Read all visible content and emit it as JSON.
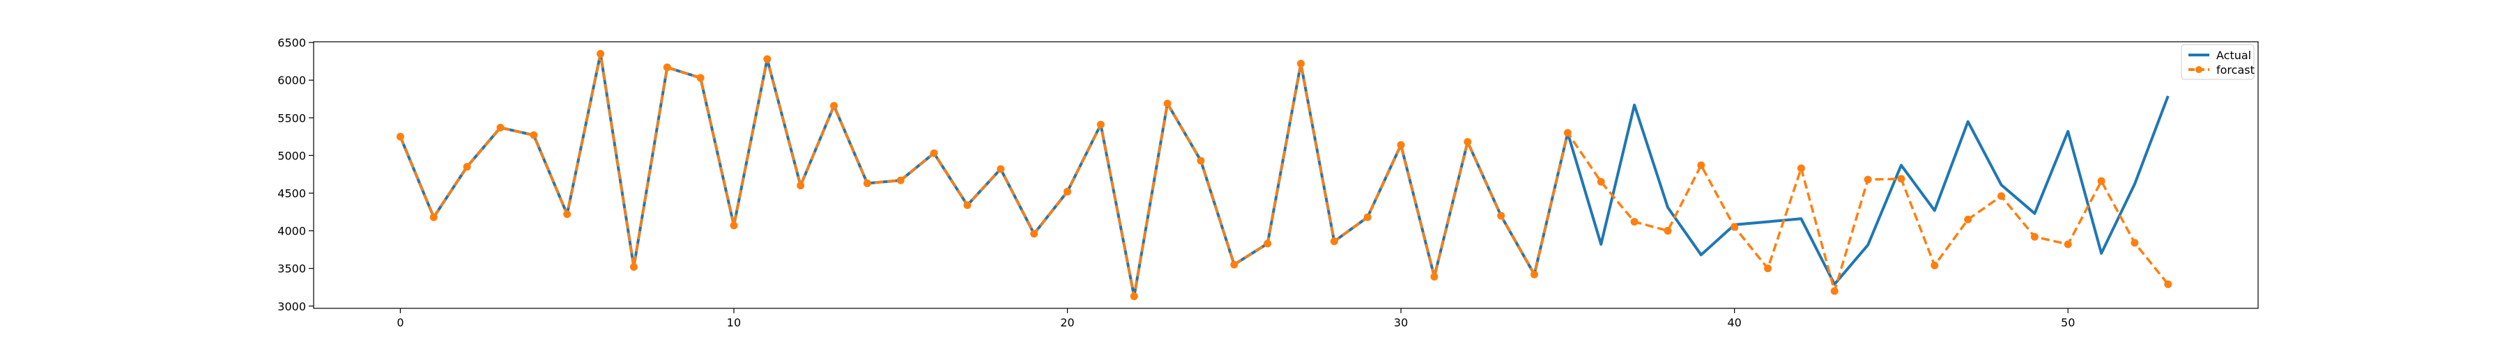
{
  "chart_data": {
    "type": "line",
    "title": "",
    "xlabel": "",
    "ylabel": "",
    "xlim": [
      -2.6,
      55.7
    ],
    "ylim": [
      2970,
      6510
    ],
    "xticks": [
      0,
      10,
      20,
      30,
      40,
      50
    ],
    "yticks": [
      3000,
      3500,
      4000,
      4500,
      5000,
      5500,
      6000,
      6500
    ],
    "grid": false,
    "legend": "top-right",
    "series": [
      {
        "name": "Actual",
        "color": "#1f77b4",
        "style": "solid",
        "x": [
          0,
          1,
          2,
          3,
          4,
          5,
          6,
          7,
          8,
          9,
          10,
          11,
          12,
          13,
          14,
          15,
          16,
          17,
          18,
          19,
          20,
          21,
          22,
          23,
          24,
          25,
          26,
          27,
          28,
          29,
          30,
          31,
          32,
          33,
          34,
          35,
          36,
          37,
          38,
          39,
          40,
          41,
          42,
          43,
          44,
          45,
          46,
          47,
          48,
          49,
          50,
          51,
          52,
          53
        ],
        "values": [
          5250,
          4180,
          4850,
          5370,
          5270,
          4220,
          6350,
          3520,
          6170,
          6030,
          4070,
          6280,
          4600,
          5660,
          4630,
          4670,
          5030,
          4340,
          4820,
          3960,
          4520,
          5410,
          3130,
          5690,
          4930,
          3550,
          3830,
          6220,
          3860,
          4180,
          5140,
          3390,
          5180,
          4200,
          3420,
          5300,
          3820,
          5670,
          4310,
          3680,
          4080,
          4120,
          4160,
          3290,
          3810,
          4870,
          4270,
          5450,
          4610,
          4230,
          5320,
          3700,
          4620,
          5790
        ]
      },
      {
        "name": "forcast",
        "color": "#ff7f0e",
        "style": "dashed",
        "marker": "circle",
        "x": [
          0,
          1,
          2,
          3,
          4,
          5,
          6,
          7,
          8,
          9,
          10,
          11,
          12,
          13,
          14,
          15,
          16,
          17,
          18,
          19,
          20,
          21,
          22,
          23,
          24,
          25,
          26,
          27,
          28,
          29,
          30,
          31,
          32,
          33,
          34,
          35,
          36,
          37,
          38,
          39,
          40,
          41,
          42,
          43,
          44,
          45,
          46,
          47,
          48,
          49,
          50,
          51,
          52,
          53
        ],
        "values": [
          5250,
          4180,
          4850,
          5370,
          5270,
          4220,
          6350,
          3520,
          6170,
          6030,
          4070,
          6280,
          4600,
          5660,
          4630,
          4670,
          5030,
          4340,
          4820,
          3960,
          4520,
          5410,
          3130,
          5690,
          4930,
          3550,
          3830,
          6220,
          3860,
          4180,
          5140,
          3390,
          5180,
          4200,
          3420,
          5300,
          4650,
          4120,
          4000,
          4870,
          4050,
          3500,
          4830,
          3200,
          4680,
          4690,
          3540,
          4150,
          4460,
          3920,
          3820,
          4660,
          3840,
          3290
        ]
      }
    ]
  }
}
